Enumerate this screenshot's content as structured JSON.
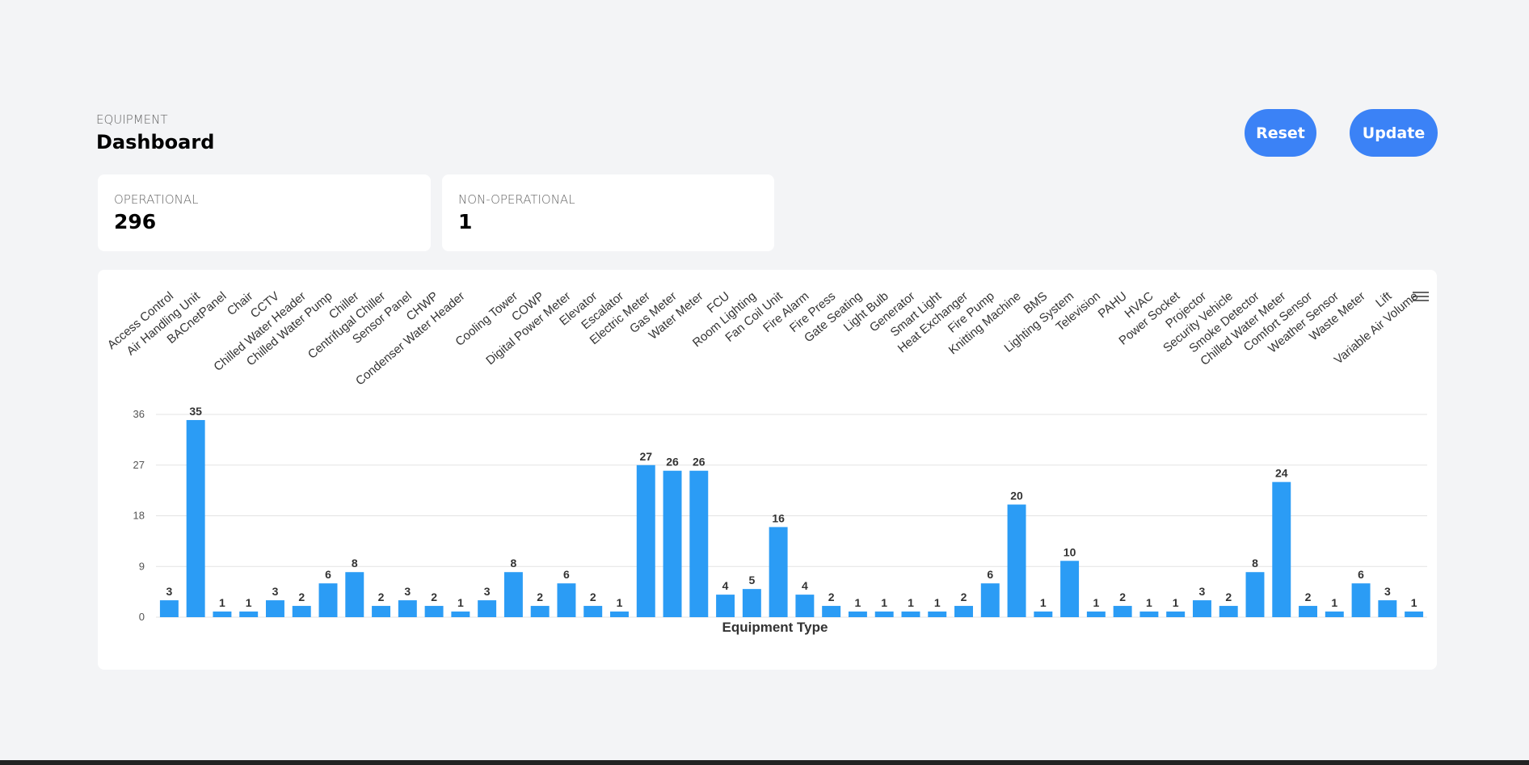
{
  "header": {
    "section": "EQUIPMENT",
    "title": "Dashboard"
  },
  "buttons": [
    "Reset",
    "Update"
  ],
  "stats": [
    {
      "label": "OPERATIONAL",
      "value": 296
    },
    {
      "label": "NON-OPERATIONAL",
      "value": 1
    }
  ],
  "chart_data": {
    "type": "bar",
    "xlabel": "Equipment Type",
    "color": "#2b9cf5",
    "grid": true,
    "ylim": [
      0,
      36
    ],
    "yticks": [
      0,
      9,
      18,
      27,
      36
    ],
    "categories": [
      "Access Control",
      "Air Handling Unit",
      "BACnetPanel",
      "Chair",
      "CCTV",
      "Chilled Water Header",
      "Chilled Water Pump",
      "Chiller",
      "Centrifugal Chiller",
      "Sensor Panel",
      "CHWP",
      "Condenser Water Header",
      null,
      "Cooling Tower",
      "COWP",
      "Digital Power Meter",
      "Elevator",
      "Escalator",
      "Electric Meter",
      "Gas Meter",
      "Water Meter",
      "FCU",
      "Room Lighting",
      "Fan Coil Unit",
      "Fire Alarm",
      "Fire Press",
      "Gate Seating",
      "Light Bulb",
      "Generator",
      "Smart Light",
      "Heat Exchanger",
      "Fire Pump",
      "Knitting Machine",
      "BMS",
      "Lighting System",
      "Television",
      "PAHU",
      "HVAC",
      "Power Socket",
      "Projector",
      "Security Vehicle",
      "Smoke Detector",
      "Chilled Water Meter",
      "Comfort Sensor",
      "Weather Sensor",
      "Waste Meter",
      "Lift",
      "Variable Air Volume"
    ],
    "values": [
      3,
      35,
      1,
      1,
      3,
      2,
      6,
      8,
      2,
      3,
      2,
      1,
      3,
      8,
      2,
      6,
      2,
      1,
      27,
      26,
      26,
      4,
      5,
      16,
      4,
      2,
      1,
      1,
      1,
      1,
      2,
      6,
      20,
      1,
      10,
      1,
      2,
      1,
      1,
      3,
      2,
      8,
      24,
      2,
      1,
      6,
      3,
      1
    ]
  }
}
